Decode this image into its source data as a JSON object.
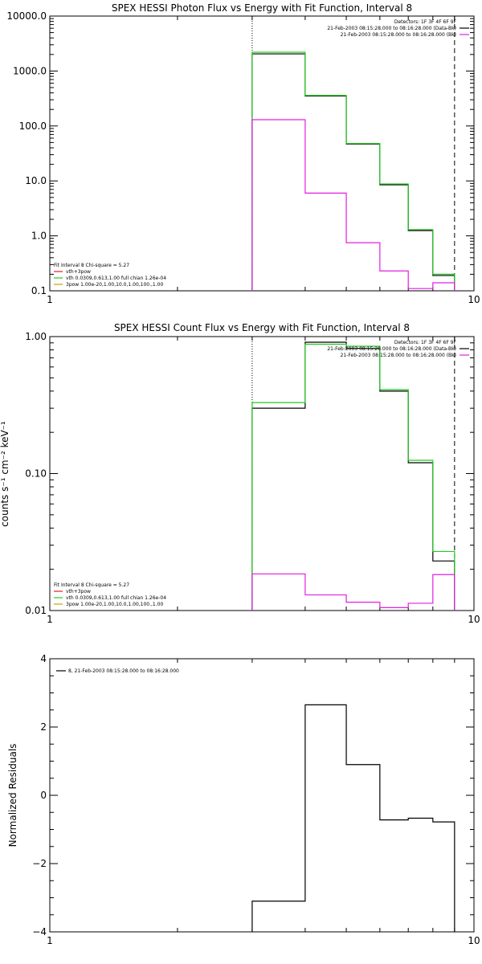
{
  "chart_data": [
    {
      "type": "line",
      "title": "SPEX HESSI Photon Flux vs Energy with Fit Function, Interval 8",
      "xlabel": "",
      "ylabel": "",
      "xscale": "log",
      "yscale": "log",
      "xlim": [
        1,
        10
      ],
      "ylim": [
        0.1,
        10000
      ],
      "x_tick_labels": [
        {
          "v": 1,
          "t": "1"
        },
        {
          "v": 10,
          "t": "10"
        }
      ],
      "y_tick_labels": [
        {
          "v": 0.1,
          "t": "0.1"
        },
        {
          "v": 1,
          "t": "1.0"
        },
        {
          "v": 10,
          "t": "10.0"
        },
        {
          "v": 100,
          "t": "100.0"
        },
        {
          "v": 1000,
          "t": "1000.0"
        },
        {
          "v": 10000,
          "t": "10000.0"
        }
      ],
      "vlines": [
        {
          "x": 3.0,
          "style": "dotted",
          "color": "#000000"
        },
        {
          "x": 9.0,
          "style": "dashed",
          "color": "#000000"
        }
      ],
      "edges": [
        3.0,
        4.0,
        5.0,
        6.0,
        7.0,
        8.0,
        9.0
      ],
      "series": [
        {
          "name": "",
          "color": "#000000",
          "values": [
            2050,
            350,
            47,
            8.5,
            1.25,
            0.19
          ]
        },
        {
          "name": "",
          "color": "#22cc22",
          "values": [
            2200,
            360,
            48,
            8.8,
            1.3,
            0.2
          ]
        },
        {
          "name": "",
          "color": "#e020e0",
          "values": [
            130,
            6,
            0.75,
            0.23,
            0.11,
            0.14
          ]
        }
      ],
      "header_right": [
        {
          "text": "Detectors: 1F 3F 4F 6F 9F",
          "color": ""
        },
        {
          "text": "21-Feb-2003 08:15:28.000 to 08:16:28.000 (Data-Bk)",
          "color": "#000000"
        },
        {
          "text": "21-Feb-2003 08:15:28.000 to 08:16:28.000 (Bk)",
          "color": "#e020e0"
        }
      ],
      "legend_bl": [
        {
          "text": "Fit Interval 8    Chi-square = 5.27",
          "color": ""
        },
        {
          "text": "vth+3pow",
          "color": "#e02020"
        },
        {
          "text": "vth 0.0309,0.613,1.00   full chian 1.26e-04",
          "color": "#22cc22"
        },
        {
          "text": "3pow 1.00e-20,1.00,10.0,1.00,100.,1.00",
          "color": "#c8a000"
        }
      ]
    },
    {
      "type": "line",
      "title": "SPEX HESSI Count Flux vs Energy with Fit Function, Interval 8",
      "xlabel": "",
      "ylabel": "counts s⁻¹ cm⁻² keV⁻¹",
      "xscale": "log",
      "yscale": "log",
      "xlim": [
        1,
        10
      ],
      "ylim": [
        0.01,
        1
      ],
      "x_tick_labels": [
        {
          "v": 1,
          "t": "1"
        },
        {
          "v": 10,
          "t": "10"
        }
      ],
      "y_tick_labels": [
        {
          "v": 0.01,
          "t": "0.01"
        },
        {
          "v": 0.1,
          "t": "0.10"
        },
        {
          "v": 1,
          "t": "1.00"
        }
      ],
      "vlines": [
        {
          "x": 3.0,
          "style": "dotted",
          "color": "#000000"
        },
        {
          "x": 9.0,
          "style": "dashed",
          "color": "#000000"
        }
      ],
      "edges": [
        3.0,
        4.0,
        5.0,
        6.0,
        7.0,
        8.0,
        9.0
      ],
      "series": [
        {
          "name": "",
          "color": "#000000",
          "values": [
            0.3,
            0.91,
            0.82,
            0.4,
            0.12,
            0.023
          ]
        },
        {
          "name": "",
          "color": "#22cc22",
          "values": [
            0.33,
            0.88,
            0.85,
            0.41,
            0.125,
            0.027
          ]
        },
        {
          "name": "",
          "color": "#e020e0",
          "values": [
            0.0185,
            0.013,
            0.0115,
            0.0105,
            0.0113,
            0.0183
          ]
        }
      ],
      "header_right": [
        {
          "text": "Detectors: 1F 3F 4F 6F 9F",
          "color": ""
        },
        {
          "text": "21-Feb-2003 08:15:28.000 to 08:16:28.000 (Data-Bk)",
          "color": "#000000"
        },
        {
          "text": "21-Feb-2003 08:15:28.000 to 08:16:28.000 (Bk)",
          "color": "#e020e0"
        }
      ],
      "legend_bl": [
        {
          "text": "Fit Interval 8    Chi-square = 5.27",
          "color": ""
        },
        {
          "text": "vth+3pow",
          "color": "#e02020"
        },
        {
          "text": "vth 0.0309,0.613,1.00   full chian 1.26e-04",
          "color": "#22cc22"
        },
        {
          "text": "3pow 1.00e-20,1.00,10.0,1.00,100.,1.00",
          "color": "#c8a000"
        }
      ]
    },
    {
      "type": "line",
      "title": "",
      "xlabel": "",
      "ylabel": "Normalized Residuals",
      "xscale": "log",
      "yscale": "linear",
      "xlim": [
        1,
        10
      ],
      "ylim": [
        -4,
        4
      ],
      "x_tick_labels": [
        {
          "v": 1,
          "t": "1"
        },
        {
          "v": 10,
          "t": "10"
        }
      ],
      "y_tick_labels": [
        {
          "v": -4,
          "t": "−4"
        },
        {
          "v": -2,
          "t": "−2"
        },
        {
          "v": 0,
          "t": "0"
        },
        {
          "v": 2,
          "t": "2"
        },
        {
          "v": 4,
          "t": "4"
        }
      ],
      "vlines": [],
      "edges": [
        3.0,
        4.0,
        5.0,
        6.0,
        7.0,
        8.0,
        9.0
      ],
      "series": [
        {
          "name": "8, 21-Feb-2003 08:15:28.000 to 08:16:28.000",
          "color": "#000000",
          "values": [
            -3.1,
            2.65,
            0.9,
            -0.72,
            -0.67,
            -0.78
          ]
        }
      ],
      "header_right": [],
      "legend_bl": [],
      "legend_tl": [
        {
          "text": "8, 21-Feb-2003 08:15:28.000 to 08:16:28.000",
          "color": "#000000"
        }
      ]
    }
  ]
}
